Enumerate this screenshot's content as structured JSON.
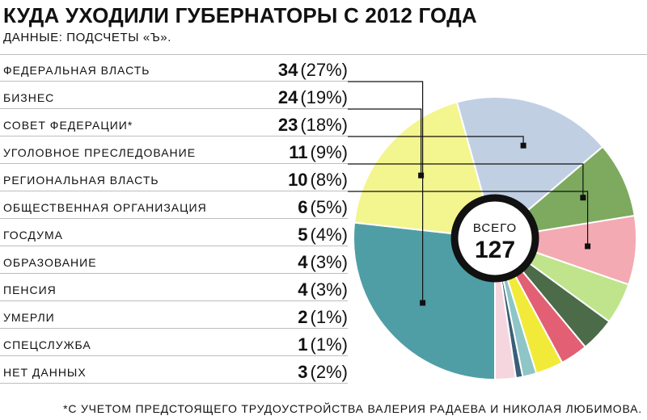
{
  "title": "КУДА УХОДИЛИ ГУБЕРНАТОРЫ С 2012 ГОДА",
  "subtitle": "ДАННЫЕ: ПОДСЧЕТЫ «Ъ».",
  "footnote": "*С УЧЕТОМ ПРЕДСТОЯЩЕГО ТРУДОУСТРОЙСТВА ВАЛЕРИЯ РАДАЕВА И НИКОЛАЯ ЛЮБИМОВА.",
  "center": {
    "label": "ВСЕГО",
    "total": "127"
  },
  "rows": [
    {
      "label": "ФЕДЕРАЛЬНАЯ ВЛАСТЬ",
      "count": "34",
      "pct": "(27%)"
    },
    {
      "label": "БИЗНЕС",
      "count": "24",
      "pct": "(19%)"
    },
    {
      "label": "СОВЕТ ФЕДЕРАЦИИ*",
      "count": "23",
      "pct": "(18%)"
    },
    {
      "label": "УГОЛОВНОЕ ПРЕСЛЕДОВАНИЕ",
      "count": "11",
      "pct": "(9%)"
    },
    {
      "label": "РЕГИОНАЛЬНАЯ ВЛАСТЬ",
      "count": "10",
      "pct": "(8%)"
    },
    {
      "label": "ОБЩЕСТВЕННАЯ ОРГАНИЗАЦИЯ",
      "count": "6",
      "pct": "(5%)"
    },
    {
      "label": "ГОСДУМА",
      "count": "5",
      "pct": "(4%)"
    },
    {
      "label": "ОБРАЗОВАНИЕ",
      "count": "4",
      "pct": "(3%)"
    },
    {
      "label": "ПЕНСИЯ",
      "count": "4",
      "pct": "(3%)"
    },
    {
      "label": "УМЕРЛИ",
      "count": "2",
      "pct": "(1%)"
    },
    {
      "label": "СПЕЦСЛУЖБА",
      "count": "1",
      "pct": "(1%)"
    },
    {
      "label": "НЕТ ДАННЫХ",
      "count": "3",
      "pct": "(2%)"
    }
  ],
  "chart_data": {
    "type": "pie",
    "total": 127,
    "categories": [
      "ФЕДЕРАЛЬНАЯ ВЛАСТЬ",
      "БИЗНЕС",
      "СОВЕТ ФЕДЕРАЦИИ*",
      "УГОЛОВНОЕ ПРЕСЛЕДОВАНИЕ",
      "РЕГИОНАЛЬНАЯ ВЛАСТЬ",
      "ОБЩЕСТВЕННАЯ ОРГАНИЗАЦИЯ",
      "ГОСДУМА",
      "ОБРАЗОВАНИЕ",
      "ПЕНСИЯ",
      "УМЕРЛИ",
      "СПЕЦСЛУЖБА",
      "НЕТ ДАННЫХ"
    ],
    "values": [
      34,
      24,
      23,
      11,
      10,
      6,
      5,
      4,
      4,
      2,
      1,
      3
    ],
    "percents": [
      27,
      19,
      18,
      9,
      8,
      5,
      4,
      3,
      3,
      1,
      1,
      2
    ],
    "colors": [
      "#4f9ea6",
      "#f3f58f",
      "#c1cfe3",
      "#7daa5f",
      "#f4aab3",
      "#bfe48c",
      "#4c6b49",
      "#e25f74",
      "#f2ea38",
      "#8ec5c6",
      "#3a5f79",
      "#f6d6de"
    ]
  }
}
